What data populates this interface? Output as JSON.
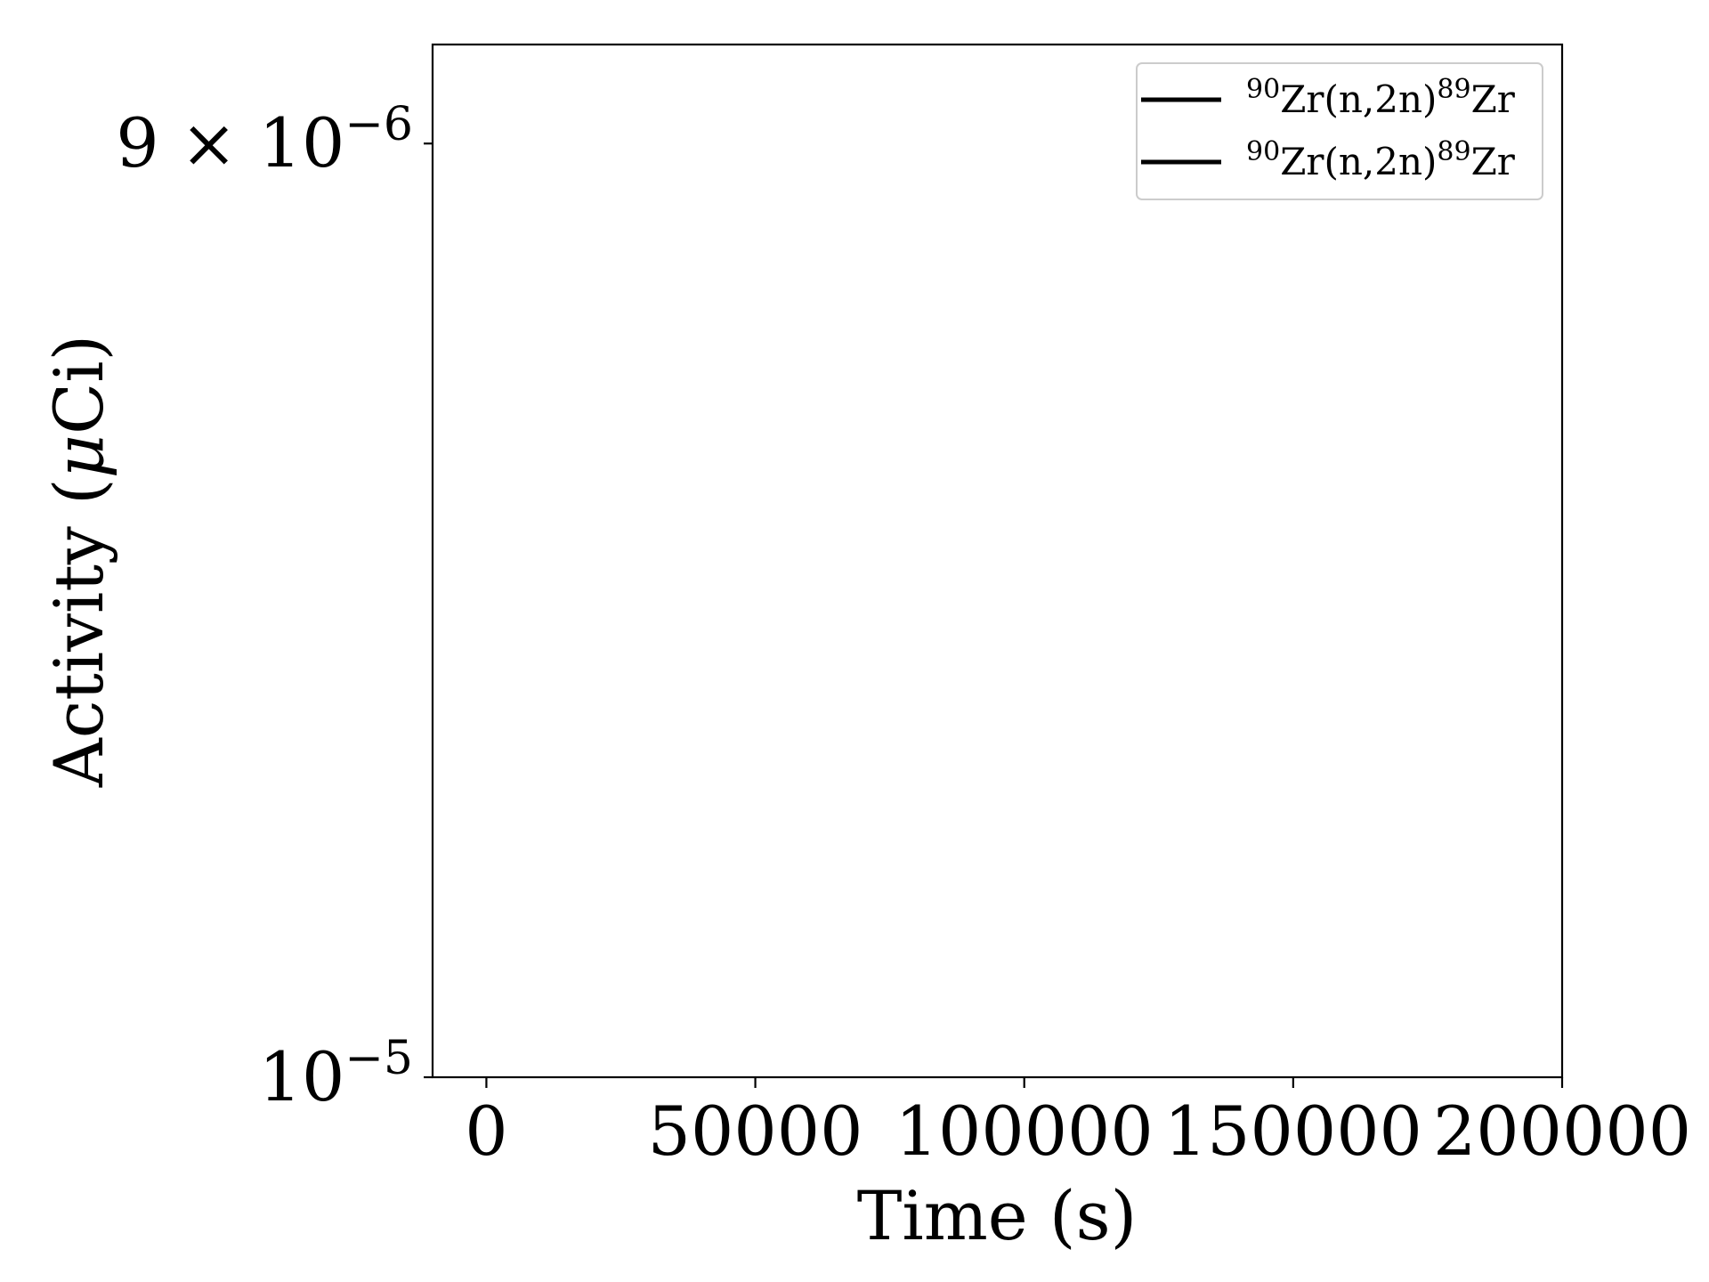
{
  "chart_data": {
    "type": "line",
    "xlabel": "Time (s)",
    "ylabel_pre": "Activity (",
    "ylabel_mu": "μ",
    "ylabel_post": "Ci)",
    "x_range": [
      -10000,
      200000
    ],
    "x_ticks": [
      {
        "value": 0,
        "label": "0"
      },
      {
        "value": 50000,
        "label": "50000"
      },
      {
        "value": 100000,
        "label": "100000"
      },
      {
        "value": 150000,
        "label": "150000"
      },
      {
        "value": 200000,
        "label": "200000"
      }
    ],
    "y_scale": "log",
    "y_range": [
      1e-05,
      8.9e-06
    ],
    "y_ticks": [
      {
        "value": 9e-06,
        "mantissa": "9",
        "times": "×",
        "base": "10",
        "exponent": "−6"
      },
      {
        "value": 1e-05,
        "mantissa": "",
        "times": "",
        "base": "10",
        "exponent": "−5"
      }
    ],
    "legend_position": "top-right",
    "legend": [
      {
        "mass_a": "90",
        "mid": "Zr(n,2n)",
        "mass_b": "89",
        "tail": "Zr",
        "color": "#000000"
      },
      {
        "mass_a": "90",
        "mid": "Zr(n,2n)",
        "mass_b": "89",
        "tail": "Zr",
        "color": "#000000"
      }
    ],
    "grid": false,
    "series": []
  }
}
